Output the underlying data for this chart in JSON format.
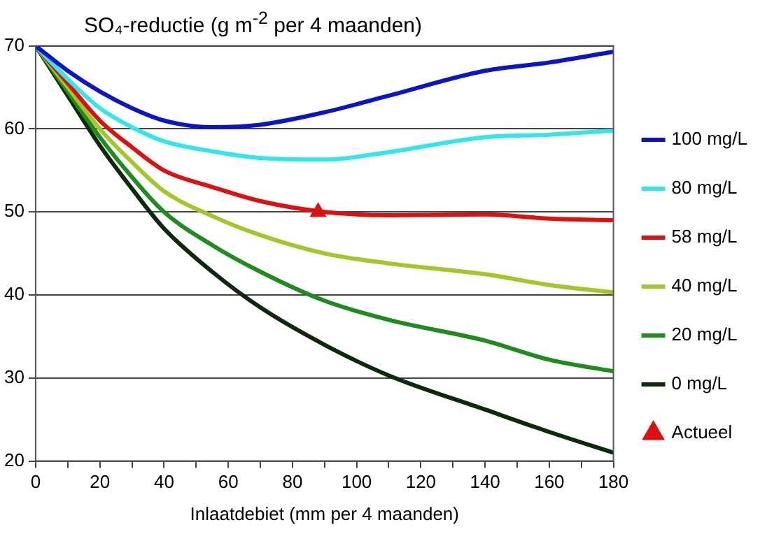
{
  "chart_data": {
    "type": "line",
    "title": "SO₄-reductie (g m$^{-2}$ per 4 maanden)",
    "xlabel": "Inlaatdebiet (mm per 4 maanden)",
    "x": [
      0,
      10,
      20,
      30,
      40,
      55,
      70,
      90,
      110,
      140,
      160,
      180
    ],
    "series": [
      {
        "name": "100 mg/L",
        "color": "#0a14c8",
        "values": [
          70,
          67,
          64.5,
          62.5,
          61,
          60.2,
          60.5,
          62,
          64,
          67,
          68,
          69.3
        ]
      },
      {
        "name": "80 mg/L",
        "color": "#33e6ee",
        "values": [
          70,
          66,
          62.5,
          60.2,
          58.5,
          57.3,
          56.5,
          56.3,
          57.2,
          59,
          59.3,
          59.8
        ]
      },
      {
        "name": "58 mg/L",
        "color": "#dd1111",
        "values": [
          70,
          65.5,
          61,
          57.8,
          55,
          53,
          51.3,
          50,
          49.6,
          49.7,
          49.2,
          49
        ]
      },
      {
        "name": "40 mg/L",
        "color": "#a0c828",
        "values": [
          70,
          65,
          60,
          56,
          52.5,
          49.5,
          47.2,
          45,
          43.8,
          42.5,
          41.2,
          40.3
        ]
      },
      {
        "name": "20 mg/L",
        "color": "#1e8c1e",
        "values": [
          70,
          64.5,
          59,
          54.2,
          50,
          46,
          42.8,
          39.3,
          37,
          34.5,
          32.2,
          30.8
        ]
      },
      {
        "name": "0 mg/L",
        "color": "#0a2a0a",
        "values": [
          70,
          64,
          58,
          52.8,
          48,
          42.8,
          38.5,
          34,
          30.3,
          26.2,
          23.5,
          21
        ]
      },
      {
        "name": "Actueel",
        "type": "scatter",
        "marker": "triangle",
        "color": "#dd1111",
        "x": [
          88
        ],
        "values": [
          50
        ]
      }
    ],
    "marker": "none",
    "line_style": "solid",
    "xlim": [
      0,
      180
    ],
    "xticks": [
      0,
      {
        "value": 10,
        "label": null
      },
      20,
      {
        "value": 30,
        "label": null
      },
      40,
      {
        "value": 50,
        "label": null
      },
      60,
      {
        "value": 70,
        "label": null
      },
      80,
      {
        "value": 90,
        "label": null
      },
      100,
      {
        "value": 110,
        "label": null
      },
      120,
      {
        "value": 130,
        "label": null
      },
      140,
      {
        "value": 150,
        "label": null
      },
      160,
      {
        "value": 170,
        "label": null
      },
      180
    ],
    "ylim": [
      20,
      70
    ],
    "yticks": [
      20,
      30,
      40,
      50,
      60,
      70
    ],
    "grid": "y",
    "legend": "right"
  }
}
